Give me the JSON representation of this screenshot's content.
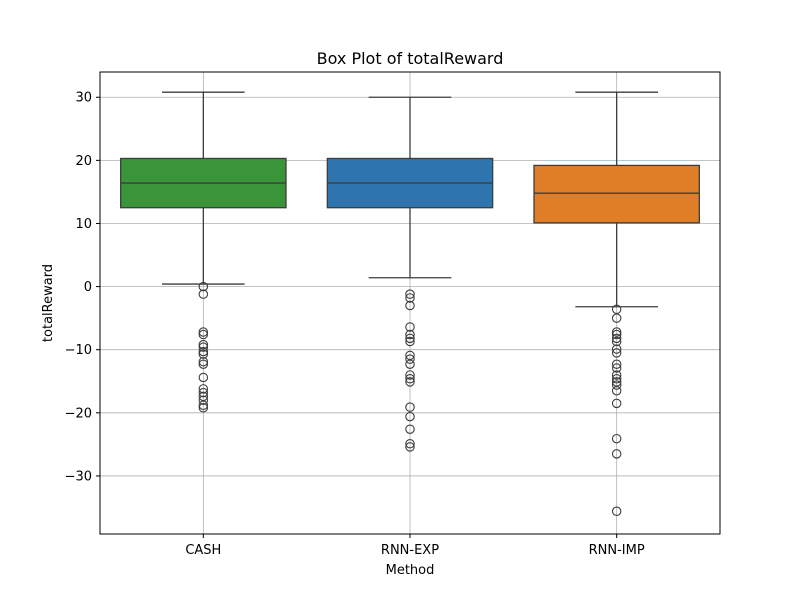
{
  "chart_data": {
    "type": "box",
    "title": "Box Plot of totalReward",
    "xlabel": "Method",
    "ylabel": "totalReward",
    "ylim": [
      -39.2,
      34.0
    ],
    "yticks": [
      30,
      20,
      10,
      0,
      -10,
      -20,
      -30
    ],
    "ytick_labels": [
      "30",
      "20",
      "10",
      "0",
      "−10",
      "−20",
      "−30"
    ],
    "grid": true,
    "legend": "none",
    "categories": [
      "CASH",
      "RNN-EXP",
      "RNN-IMP"
    ],
    "boxes": [
      {
        "category": "CASH",
        "color": "#3a943a",
        "whisker_low": 0.4,
        "q1": 12.5,
        "median": 16.4,
        "q3": 20.3,
        "whisker_high": 30.8,
        "outliers": [
          0.0,
          -1.2,
          -7.2,
          -7.6,
          -9.2,
          -9.6,
          -10.3,
          -10.7,
          -11.9,
          -12.3,
          -14.4,
          -16.2,
          -16.8,
          -17.4,
          -18.0,
          -18.8,
          -19.2
        ]
      },
      {
        "category": "RNN-EXP",
        "color": "#2e74ae",
        "whisker_low": 1.4,
        "q1": 12.5,
        "median": 16.4,
        "q3": 20.3,
        "whisker_high": 30.0,
        "outliers": [
          -1.2,
          -1.8,
          -3.0,
          -6.4,
          -7.6,
          -8.2,
          -8.7,
          -10.9,
          -11.5,
          -12.3,
          -14.0,
          -14.6,
          -15.1,
          -19.1,
          -20.6,
          -22.6,
          -24.9,
          -25.4
        ]
      },
      {
        "category": "RNN-IMP",
        "color": "#e07e28",
        "whisker_low": -3.2,
        "q1": 10.1,
        "median": 14.8,
        "q3": 19.2,
        "whisker_high": 30.8,
        "outliers": [
          -3.6,
          -5.0,
          -7.2,
          -7.6,
          -8.2,
          -8.7,
          -9.9,
          -10.5,
          -12.3,
          -12.9,
          -14.0,
          -14.6,
          -15.1,
          -15.6,
          -16.5,
          -18.5,
          -24.1,
          -26.5,
          -35.6
        ]
      }
    ]
  }
}
